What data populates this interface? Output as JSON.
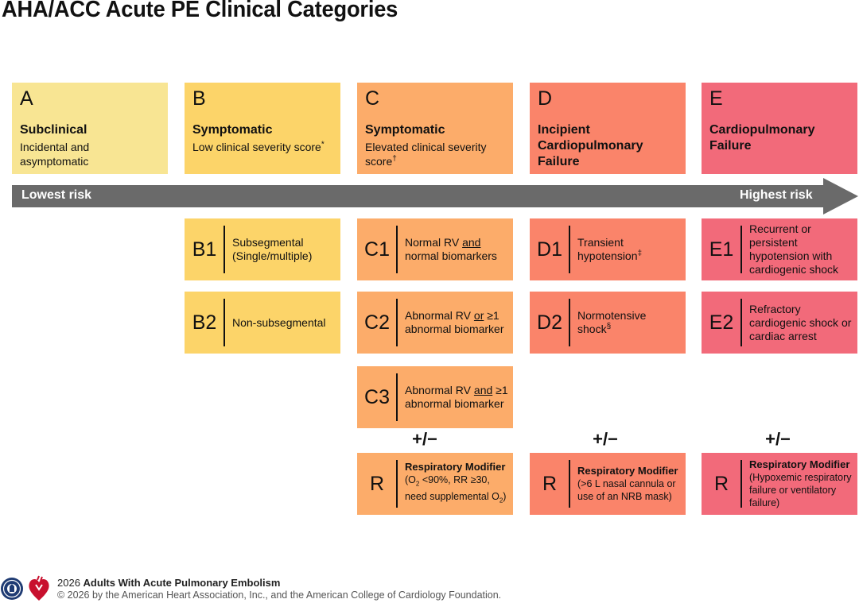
{
  "title": "AHA/ACC Acute PE Clinical Categories",
  "colors": {
    "a": "#f8e593",
    "b": "#fcd469",
    "c": "#fcac6a",
    "d": "#fa846a",
    "e": "#f26a7a",
    "arrow": "#6a6a6a"
  },
  "categories": [
    {
      "letter": "A",
      "name": "Subclinical",
      "desc": "Incidental and asymptomatic",
      "sup": ""
    },
    {
      "letter": "B",
      "name": "Symptomatic",
      "desc": "Low clinical severity score",
      "sup": "*"
    },
    {
      "letter": "C",
      "name": "Symptomatic",
      "desc": "Elevated clinical severity score",
      "sup": "†"
    },
    {
      "letter": "D",
      "name": "Incipient Cardiopulmonary Failure",
      "desc": "",
      "sup": ""
    },
    {
      "letter": "E",
      "name": "Cardiopulmonary Failure",
      "desc": "",
      "sup": ""
    }
  ],
  "arrow": {
    "left_label": "Lowest risk",
    "right_label": "Highest risk"
  },
  "subcategories": {
    "B1": {
      "code": "B1",
      "text": "Subsegmental (Single/multiple)"
    },
    "B2": {
      "code": "B2",
      "text": "Non-subsegmental"
    },
    "C1": {
      "code": "C1",
      "pre": "Normal RV ",
      "u": "and",
      "post": " normal biomarkers"
    },
    "C2": {
      "code": "C2",
      "pre": "Abnormal RV ",
      "u": "or",
      "post": " ≥1 abnormal biomarker"
    },
    "C3": {
      "code": "C3",
      "pre": "Abnormal RV ",
      "u": "and",
      "post": " ≥1 abnormal biomarker"
    },
    "D1": {
      "code": "D1",
      "text": "Transient hypotension",
      "sup": "‡"
    },
    "D2": {
      "code": "D2",
      "text": "Normotensive shock",
      "sup": "§"
    },
    "E1": {
      "code": "E1",
      "text": "Recurrent or persistent hypotension with cardiogenic shock"
    },
    "E2": {
      "code": "E2",
      "text": "Refractory cardiogenic shock or cardiac arrest"
    }
  },
  "plus_minus": "+/−",
  "modifiers": [
    {
      "code": "R",
      "title": "Respiratory Modifier",
      "detail_pre": "(O",
      "detail_sub1": "2",
      "detail_mid": " <90%, RR ≥30, need supplemental O",
      "detail_sub2": "2",
      "detail_post": ")"
    },
    {
      "code": "R",
      "title": "Respiratory Modifier",
      "detail": "(>6 L nasal cannula or use of an NRB mask)"
    },
    {
      "code": "R",
      "title": "Respiratory Modifier",
      "detail": "(Hypoxemic respiratory failure or ventilatory failure)"
    }
  ],
  "footer": {
    "year": "2026",
    "guideline": "Adults With Acute Pulmonary Embolism",
    "copyright": "© 2026 by the American Heart Association, Inc., and the American College of Cardiology Foundation."
  }
}
